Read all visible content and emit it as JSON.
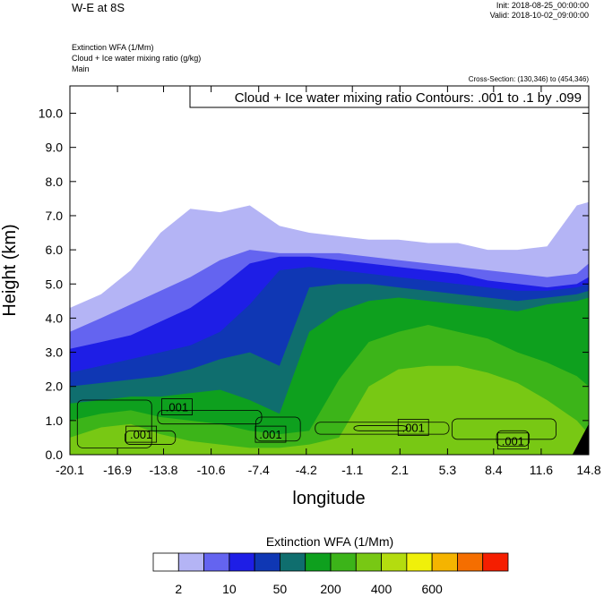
{
  "header": {
    "title": "W-E at 8S",
    "init": "Init: 2018-08-25_00:00:00",
    "valid": "Valid: 2018-10-02_09:00:00",
    "field_line1": "Extinction WFA   (1/Mm)",
    "field_line2": "Cloud + Ice water mixing ratio   (g/kg)",
    "field_line3": "Main",
    "cross_section": "Cross-Section: (130,346) to (454,346)"
  },
  "chart_data": {
    "type": "heatmap",
    "subtype": "filled-contour cross-section with line contours",
    "xlabel": "longitude",
    "ylabel": "Height (km)",
    "xlim": [
      -20.1,
      14.8
    ],
    "ylim": [
      0.0,
      10.8
    ],
    "x_ticks": [
      "-20.1",
      "-16.9",
      "-13.8",
      "-10.6",
      "-7.4",
      "-4.2",
      "-1.1",
      "2.1",
      "5.3",
      "8.4",
      "11.6",
      "14.8"
    ],
    "y_ticks": [
      "0.0",
      "1.0",
      "2.0",
      "3.0",
      "4.0",
      "5.0",
      "6.0",
      "7.0",
      "8.0",
      "9.0",
      "10.0"
    ],
    "contour_info": "Cloud + Ice water mixing ratio Contours: .001 to .1 by .099",
    "contour_labels": [
      {
        "text": ".001",
        "lon": -15.3,
        "height": 0.6
      },
      {
        "text": ".001",
        "lon": -12.9,
        "height": 1.4
      },
      {
        "text": ".001",
        "lon": -6.6,
        "height": 0.6
      },
      {
        "text": ".001",
        "lon": 3.0,
        "height": 0.8
      },
      {
        "text": ".001",
        "lon": 9.7,
        "height": 0.4
      }
    ],
    "colorbar": {
      "title": "Extinction WFA  (1/Mm)",
      "colors": [
        "#ffffff",
        "#b4b4f5",
        "#6464f0",
        "#1e1ee6",
        "#0f37b4",
        "#0f6e6e",
        "#0ea01e",
        "#3cb419",
        "#78c814",
        "#b4dc0f",
        "#f0f00a",
        "#f5b400",
        "#f56e00",
        "#f51e00"
      ],
      "tick_labels": [
        "2",
        "10",
        "50",
        "200",
        "400",
        "600"
      ],
      "tick_boundaries": [
        1,
        3,
        5,
        7,
        9,
        11
      ]
    },
    "field_profile": {
      "note": "level index (0=white ... 8=light green) top height in km per longitude column",
      "lon": [
        -20.1,
        -18.0,
        -16.0,
        -14.0,
        -12.0,
        -10.0,
        -8.0,
        -6.0,
        -4.0,
        -2.0,
        0.0,
        2.0,
        4.0,
        6.0,
        8.0,
        10.0,
        12.0,
        14.0,
        14.8
      ],
      "level1_top": [
        4.3,
        4.7,
        5.4,
        6.5,
        7.2,
        7.1,
        7.3,
        6.7,
        6.5,
        6.4,
        6.3,
        6.3,
        6.2,
        6.2,
        6.0,
        6.0,
        6.1,
        7.3,
        7.4
      ],
      "level2_top": [
        3.6,
        4.0,
        4.4,
        4.8,
        5.2,
        5.7,
        6.0,
        5.9,
        5.9,
        5.9,
        5.8,
        5.7,
        5.6,
        5.5,
        5.4,
        5.3,
        5.2,
        5.3,
        5.6
      ],
      "level3_top": [
        3.1,
        3.3,
        3.5,
        3.9,
        4.3,
        4.9,
        5.6,
        5.8,
        5.8,
        5.7,
        5.6,
        5.5,
        5.4,
        5.3,
        5.1,
        5.0,
        4.9,
        5.0,
        5.2
      ],
      "level4_top": [
        2.4,
        2.6,
        2.8,
        3.0,
        3.2,
        3.6,
        4.4,
        5.4,
        5.5,
        5.4,
        5.3,
        5.2,
        5.1,
        5.0,
        4.9,
        4.8,
        4.8,
        4.9,
        5.0
      ],
      "level5_top": [
        2.0,
        2.1,
        2.2,
        2.3,
        2.5,
        2.8,
        3.0,
        2.6,
        4.9,
        5.0,
        5.0,
        4.9,
        4.8,
        4.7,
        4.6,
        4.5,
        4.6,
        4.7,
        4.8
      ],
      "level6_top": [
        1.5,
        1.6,
        1.7,
        1.7,
        1.8,
        1.9,
        1.6,
        1.2,
        3.6,
        4.2,
        4.5,
        4.6,
        4.5,
        4.4,
        4.3,
        4.2,
        4.4,
        4.5,
        4.6
      ],
      "level7_top": [
        1.0,
        1.2,
        1.3,
        1.1,
        1.0,
        0.9,
        0.7,
        0.6,
        0.7,
        2.2,
        3.3,
        3.6,
        3.8,
        3.6,
        3.4,
        3.0,
        2.7,
        2.3,
        2.0
      ],
      "level8_top": [
        0.5,
        0.8,
        0.9,
        0.6,
        0.4,
        0.3,
        0.2,
        0.2,
        0.3,
        0.5,
        2.0,
        2.5,
        2.6,
        2.6,
        2.4,
        2.1,
        1.6,
        1.0,
        0.6
      ]
    }
  }
}
